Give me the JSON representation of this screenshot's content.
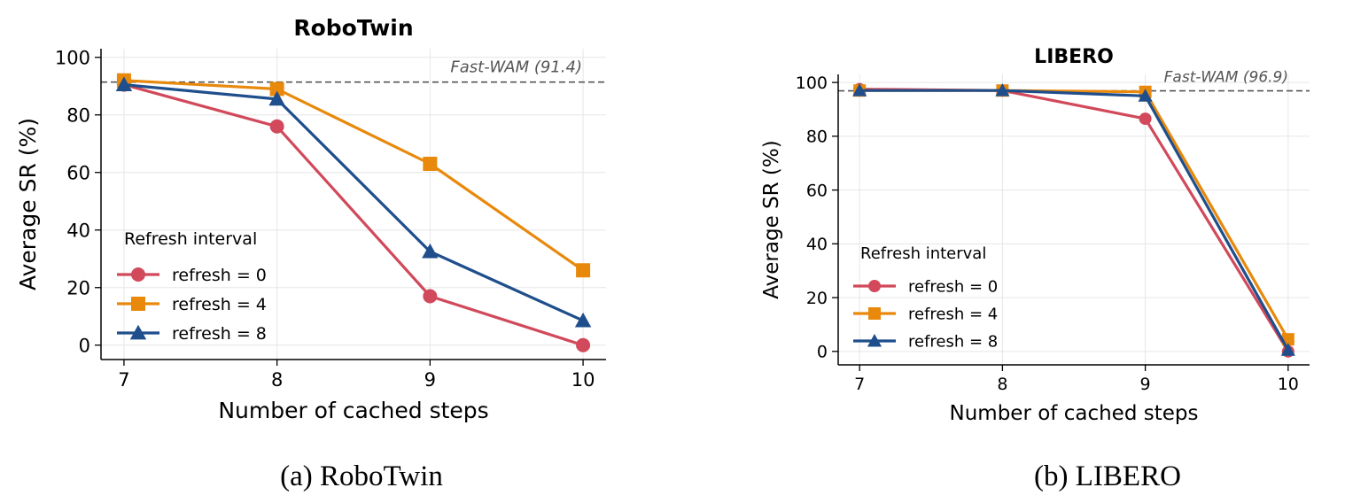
{
  "chart_data": [
    {
      "type": "line",
      "title": "RoboTwin",
      "caption": "(a) RoboTwin",
      "xlabel": "Number of cached steps",
      "ylabel": "Average SR (%)",
      "x": [
        7,
        8,
        9,
        10
      ],
      "x_ticks": [
        "7",
        "8",
        "9",
        "10"
      ],
      "xlim": [
        6.85,
        10.15
      ],
      "ylim": [
        -5,
        103
      ],
      "y_ticks": [
        0,
        20,
        40,
        60,
        80,
        100
      ],
      "grid": true,
      "legend_title": "Refresh interval",
      "legend_position": "lower-left",
      "reference": {
        "value": 91.4,
        "label": "Fast-WAM (91.4)"
      },
      "series": [
        {
          "name": "refresh = 0",
          "values": [
            90.5,
            76,
            17,
            0
          ],
          "color": "#d1495b",
          "marker": "circle"
        },
        {
          "name": "refresh = 4",
          "values": [
            92,
            89,
            63,
            26
          ],
          "color": "#e8890c",
          "marker": "square"
        },
        {
          "name": "refresh = 8",
          "values": [
            90.5,
            85.5,
            32.5,
            8.5
          ],
          "color": "#1f4e8c",
          "marker": "triangle"
        }
      ]
    },
    {
      "type": "line",
      "title": "LIBERO",
      "caption": "(b) LIBERO",
      "xlabel": "Number of cached steps",
      "ylabel": "Average SR (%)",
      "x": [
        7,
        8,
        9,
        10
      ],
      "x_ticks": [
        "7",
        "8",
        "9",
        "10"
      ],
      "xlim": [
        6.85,
        10.15
      ],
      "ylim": [
        -5,
        103
      ],
      "y_ticks": [
        0,
        20,
        40,
        60,
        80,
        100
      ],
      "grid": true,
      "legend_title": "Refresh interval",
      "legend_position": "lower-left",
      "reference": {
        "value": 96.9,
        "label": "Fast-WAM (96.9)"
      },
      "series": [
        {
          "name": "refresh = 0",
          "values": [
            97.5,
            97,
            86.5,
            0
          ],
          "color": "#d1495b",
          "marker": "circle"
        },
        {
          "name": "refresh = 4",
          "values": [
            97,
            97,
            96.5,
            4.5
          ],
          "color": "#e8890c",
          "marker": "square"
        },
        {
          "name": "refresh = 8",
          "values": [
            97,
            97,
            95,
            0.5
          ],
          "color": "#1f4e8c",
          "marker": "triangle"
        }
      ]
    }
  ]
}
